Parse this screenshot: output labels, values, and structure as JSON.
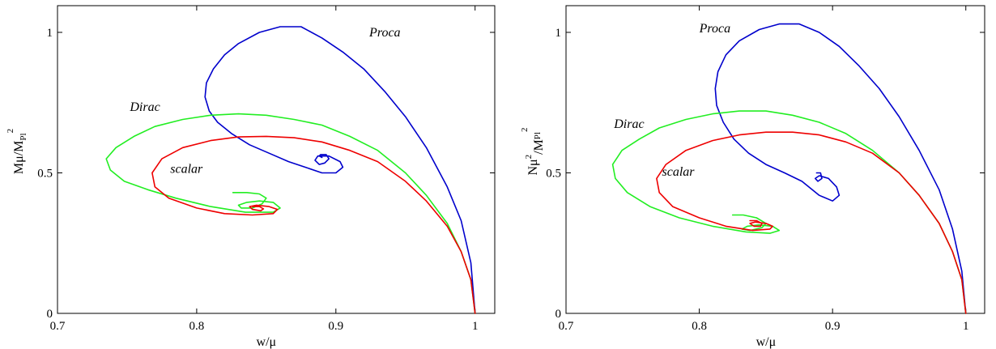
{
  "chart_data": [
    {
      "type": "line",
      "xlabel": "w/μ",
      "ylabel": {
        "main": "Mμ/M",
        "sub": "Pl",
        "sup": "2"
      },
      "xlim": [
        0.7,
        1.0
      ],
      "ylim": [
        0,
        1.0
      ],
      "xticks": [
        0.7,
        0.8,
        0.9,
        1.0
      ],
      "xtick_labels": [
        "0.7",
        "0.8",
        "0.9",
        "1"
      ],
      "yticks": [
        0,
        0.5,
        1.0
      ],
      "ytick_labels": [
        "0",
        "0.5",
        "1"
      ],
      "legend": "none",
      "grid": false,
      "series": [
        {
          "name": "Proca",
          "color": "#0000cc",
          "x": [
            1.0,
            0.997,
            0.99,
            0.98,
            0.965,
            0.95,
            0.935,
            0.92,
            0.905,
            0.89,
            0.875,
            0.86,
            0.845,
            0.83,
            0.82,
            0.812,
            0.807,
            0.806,
            0.809,
            0.815,
            0.825,
            0.838,
            0.852,
            0.866,
            0.878,
            0.89,
            0.9,
            0.905,
            0.903,
            0.895,
            0.887,
            0.885,
            0.888,
            0.892,
            0.895,
            0.893,
            0.889,
            0.888,
            0.89
          ],
          "y": [
            0.0,
            0.18,
            0.33,
            0.45,
            0.59,
            0.7,
            0.79,
            0.87,
            0.93,
            0.98,
            1.02,
            1.02,
            1.0,
            0.96,
            0.92,
            0.87,
            0.82,
            0.77,
            0.72,
            0.68,
            0.64,
            0.6,
            0.57,
            0.54,
            0.52,
            0.5,
            0.5,
            0.52,
            0.54,
            0.56,
            0.56,
            0.545,
            0.53,
            0.535,
            0.55,
            0.565,
            0.565,
            0.56,
            0.555
          ]
        },
        {
          "name": "Dirac",
          "color": "#22ee22",
          "x": [
            1.0,
            0.997,
            0.99,
            0.98,
            0.965,
            0.95,
            0.93,
            0.91,
            0.89,
            0.87,
            0.85,
            0.83,
            0.81,
            0.79,
            0.77,
            0.755,
            0.742,
            0.735,
            0.738,
            0.748,
            0.765,
            0.785,
            0.81,
            0.835,
            0.855,
            0.86,
            0.855,
            0.845,
            0.836,
            0.83,
            0.832,
            0.84,
            0.847,
            0.85,
            0.845,
            0.836,
            0.826
          ],
          "y": [
            0.0,
            0.12,
            0.22,
            0.32,
            0.42,
            0.5,
            0.58,
            0.63,
            0.67,
            0.69,
            0.705,
            0.71,
            0.705,
            0.69,
            0.665,
            0.63,
            0.59,
            0.55,
            0.51,
            0.47,
            0.44,
            0.41,
            0.38,
            0.36,
            0.36,
            0.375,
            0.395,
            0.4,
            0.395,
            0.385,
            0.375,
            0.375,
            0.39,
            0.41,
            0.425,
            0.43,
            0.43
          ]
        },
        {
          "name": "scalar",
          "color": "#ee0000",
          "x": [
            1.0,
            0.997,
            0.99,
            0.98,
            0.965,
            0.95,
            0.93,
            0.91,
            0.89,
            0.87,
            0.85,
            0.83,
            0.81,
            0.79,
            0.775,
            0.768,
            0.77,
            0.78,
            0.8,
            0.82,
            0.84,
            0.855,
            0.858,
            0.852,
            0.843,
            0.838,
            0.84,
            0.846,
            0.848,
            0.845,
            0.84
          ],
          "y": [
            0.0,
            0.12,
            0.22,
            0.31,
            0.4,
            0.47,
            0.54,
            0.58,
            0.61,
            0.625,
            0.63,
            0.628,
            0.615,
            0.59,
            0.55,
            0.5,
            0.45,
            0.41,
            0.375,
            0.355,
            0.35,
            0.355,
            0.37,
            0.38,
            0.385,
            0.38,
            0.37,
            0.365,
            0.372,
            0.38,
            0.38
          ]
        }
      ],
      "annotations": [
        "Proca",
        "Dirac",
        "scalar"
      ]
    },
    {
      "type": "line",
      "xlabel": "w/μ",
      "ylabel": {
        "main": "Nμ",
        "sup1": "2",
        "mid": "/M",
        "sub": "Pl",
        "sup2": "2"
      },
      "xlim": [
        0.7,
        1.0
      ],
      "ylim": [
        0,
        1.0
      ],
      "xticks": [
        0.7,
        0.8,
        0.9,
        1.0
      ],
      "xtick_labels": [
        "0.7",
        "0.8",
        "0.9",
        "1"
      ],
      "yticks": [
        0,
        0.5,
        1.0
      ],
      "ytick_labels": [
        "0",
        "0.5",
        "1"
      ],
      "legend": "none",
      "grid": false,
      "series": [
        {
          "name": "Proca",
          "color": "#0000cc",
          "x": [
            1.0,
            0.997,
            0.99,
            0.98,
            0.965,
            0.95,
            0.935,
            0.92,
            0.905,
            0.89,
            0.875,
            0.86,
            0.845,
            0.83,
            0.82,
            0.814,
            0.812,
            0.813,
            0.818,
            0.826,
            0.837,
            0.85,
            0.864,
            0.877,
            0.89,
            0.9,
            0.905,
            0.903,
            0.897,
            0.89,
            0.887,
            0.889,
            0.892,
            0.891,
            0.888
          ],
          "y": [
            0.0,
            0.15,
            0.3,
            0.44,
            0.58,
            0.7,
            0.8,
            0.88,
            0.95,
            1.0,
            1.03,
            1.03,
            1.01,
            0.97,
            0.92,
            0.86,
            0.8,
            0.74,
            0.68,
            0.62,
            0.57,
            0.53,
            0.5,
            0.47,
            0.42,
            0.4,
            0.42,
            0.45,
            0.48,
            0.49,
            0.48,
            0.47,
            0.48,
            0.5,
            0.5
          ]
        },
        {
          "name": "Dirac",
          "color": "#22ee22",
          "x": [
            1.0,
            0.997,
            0.99,
            0.98,
            0.965,
            0.95,
            0.93,
            0.91,
            0.89,
            0.87,
            0.85,
            0.83,
            0.81,
            0.79,
            0.77,
            0.755,
            0.742,
            0.735,
            0.737,
            0.746,
            0.763,
            0.785,
            0.81,
            0.835,
            0.853,
            0.86,
            0.855,
            0.845,
            0.836,
            0.832,
            0.838,
            0.847,
            0.85,
            0.843,
            0.833,
            0.825
          ],
          "y": [
            0.0,
            0.12,
            0.22,
            0.32,
            0.42,
            0.5,
            0.58,
            0.64,
            0.68,
            0.705,
            0.72,
            0.72,
            0.71,
            0.69,
            0.66,
            0.62,
            0.58,
            0.53,
            0.48,
            0.43,
            0.38,
            0.34,
            0.31,
            0.29,
            0.285,
            0.295,
            0.31,
            0.315,
            0.31,
            0.3,
            0.295,
            0.305,
            0.32,
            0.34,
            0.35,
            0.35
          ]
        },
        {
          "name": "scalar",
          "color": "#ee0000",
          "x": [
            1.0,
            0.997,
            0.99,
            0.98,
            0.965,
            0.95,
            0.93,
            0.91,
            0.89,
            0.87,
            0.85,
            0.83,
            0.81,
            0.79,
            0.775,
            0.768,
            0.77,
            0.78,
            0.8,
            0.82,
            0.84,
            0.853,
            0.855,
            0.85,
            0.842,
            0.838,
            0.841,
            0.846,
            0.847,
            0.843,
            0.838
          ],
          "y": [
            0.0,
            0.12,
            0.22,
            0.32,
            0.42,
            0.5,
            0.57,
            0.61,
            0.635,
            0.645,
            0.645,
            0.635,
            0.615,
            0.58,
            0.53,
            0.48,
            0.43,
            0.38,
            0.34,
            0.31,
            0.295,
            0.3,
            0.31,
            0.32,
            0.325,
            0.32,
            0.31,
            0.31,
            0.32,
            0.33,
            0.33
          ]
        }
      ],
      "annotations": [
        "Proca",
        "Dirac",
        "scalar"
      ]
    }
  ]
}
